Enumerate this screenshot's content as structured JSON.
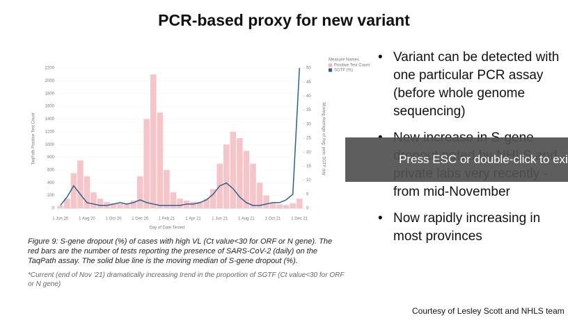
{
  "slide": {
    "title": "PCR-based proxy for new variant",
    "bullets": [
      "Variant can be detected with one particular PCR assay (before whole genome sequencing)",
      "New increase in S-gene dropout noted by NHLS and private labs very recently - from mid-November",
      "Now rapidly increasing in most provinces"
    ],
    "caption": "Figure 9: S-gene dropout (%) of cases with high VL (Ct value<30 for ORF or N gene). The red bars are the number of tests reporting the presence of SARS-CoV-2 (daily) on the TaqPath assay. The solid blue line is the moving median of S-gene dropout (%).",
    "note": "*Current (end of Nov '21) dramatically increasing trend in the proportion of SGTF (Ct value<30 for ORF or N gene)",
    "footer": "Courtesy of Lesley Scott and NHLS team",
    "overlay": "Press ESC or double-click to exit full screen mode"
  },
  "chart_data": {
    "type": "bar_line",
    "x_label": "Day of Date Tested",
    "y_label": "TaqPath Positive Test Count",
    "y2_label": "Moving Average of Avg. perc SGTF day",
    "legend_title": "Measure Names",
    "categories": [
      "1 Jun 20",
      null,
      null,
      null,
      "1 Aug 20",
      null,
      null,
      null,
      "1 Oct 20",
      null,
      null,
      null,
      "1 Dec 20",
      null,
      null,
      null,
      "1 Feb 21",
      null,
      null,
      null,
      "1 Apr 21",
      null,
      null,
      null,
      "1 Jun 21",
      null,
      null,
      null,
      "1 Aug 21",
      null,
      null,
      null,
      "1 Oct 21",
      null,
      null,
      null,
      "1 Dec 21"
    ],
    "series": [
      {
        "name": "Positive Test Count",
        "color": "#f4b6bd",
        "values": [
          40,
          150,
          550,
          750,
          500,
          250,
          150,
          100,
          80,
          70,
          80,
          120,
          500,
          1400,
          2100,
          1500,
          600,
          250,
          150,
          120,
          100,
          100,
          150,
          300,
          700,
          1000,
          1200,
          1100,
          900,
          700,
          400,
          200,
          80,
          60,
          50,
          80,
          150
        ]
      },
      {
        "name": "SGTF (%)",
        "color": "#2e5f8a",
        "axis": "y2",
        "values": [
          1,
          4,
          8,
          5,
          2,
          1.5,
          1,
          1,
          1.5,
          2,
          1.5,
          2,
          3,
          2,
          1.5,
          1,
          1,
          1,
          1,
          1.5,
          1.5,
          2,
          3,
          5,
          8,
          9,
          7,
          4,
          2,
          1,
          1,
          1.5,
          2,
          2,
          3,
          5,
          50
        ]
      }
    ],
    "ylim": [
      0,
      2200
    ],
    "yticks": [
      0,
      200,
      400,
      600,
      800,
      1000,
      1200,
      1400,
      1600,
      1800,
      2000,
      2200
    ],
    "y2lim": [
      0,
      50
    ],
    "y2ticks": [
      0,
      5,
      10,
      15,
      20,
      25,
      30,
      35,
      40,
      45,
      50
    ]
  }
}
